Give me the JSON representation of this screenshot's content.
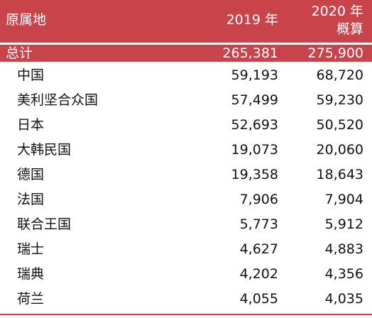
{
  "header": {
    "origin_label": "原属地",
    "col_2019": "2019 年",
    "col_2020_line1": "2020 年",
    "col_2020_line2": "概算"
  },
  "total": {
    "label": "总计",
    "v2019": "265,381",
    "v2020": "275,900"
  },
  "rows": [
    {
      "label": "中国",
      "v2019": "59,193",
      "v2020": "68,720"
    },
    {
      "label": "美利坚合众国",
      "v2019": "57,499",
      "v2020": "59,230"
    },
    {
      "label": "日本",
      "v2019": "52,693",
      "v2020": "50,520"
    },
    {
      "label": "大韩民国",
      "v2019": "19,073",
      "v2020": "20,060"
    },
    {
      "label": "德国",
      "v2019": "19,358",
      "v2020": "18,643"
    },
    {
      "label": "法国",
      "v2019": "7,906",
      "v2020": "7,904"
    },
    {
      "label": "联合王国",
      "v2019": "5,773",
      "v2020": "5,912"
    },
    {
      "label": "瑞士",
      "v2019": "4,627",
      "v2020": "4,883"
    },
    {
      "label": "瑞典",
      "v2019": "4,202",
      "v2020": "4,356"
    },
    {
      "label": "荷兰",
      "v2019": "4,055",
      "v2020": "4,035"
    }
  ],
  "colors": {
    "header_bg": "#c8434a",
    "header_text": "#ffffff",
    "body_text": "#111111"
  }
}
